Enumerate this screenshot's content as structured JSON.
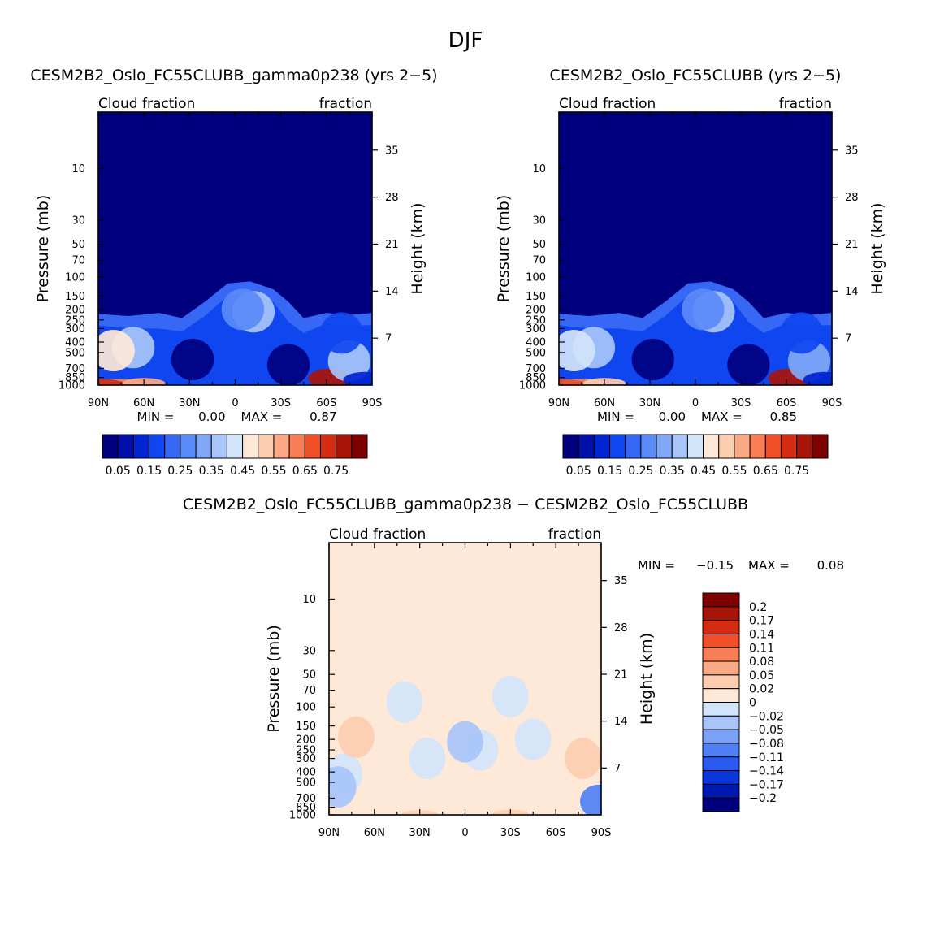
{
  "figure": {
    "suptitle": "DJF"
  },
  "chart_data": [
    {
      "id": "panel1",
      "type": "heatmap",
      "title": "CESM2B2_Oslo_FC55CLUBB_gamma0p238 (yrs 2−5)",
      "top_left_label": "Cloud fraction",
      "top_right_label": "fraction",
      "ylabel": "Pressure (mb)",
      "ylabel_right": "Height (km)",
      "x_tick_labels": [
        "90N",
        "60N",
        "30N",
        "0",
        "30S",
        "60S",
        "90S"
      ],
      "x_ticks": [
        -90,
        -60,
        -30,
        0,
        30,
        60,
        90
      ],
      "xlim": [
        -90,
        90
      ],
      "y_tick_labels": [
        "10",
        "30",
        "50",
        "70",
        "100",
        "150",
        "200",
        "250",
        "300",
        "400",
        "500",
        "700",
        "850",
        "1000"
      ],
      "y_ticks": [
        10,
        30,
        50,
        70,
        100,
        150,
        200,
        250,
        300,
        400,
        500,
        700,
        850,
        1000
      ],
      "ylim": [
        1000,
        3
      ],
      "yscale": "log",
      "height_ticks": [
        7,
        14,
        21,
        28,
        35
      ],
      "min_label": "MIN =",
      "min": "0.00",
      "max_label": "MAX =",
      "max": "0.87",
      "features": [
        {
          "x": -67,
          "p": 450,
          "value": 0.38
        },
        {
          "x": -80,
          "p": 480,
          "value": 0.45
        },
        {
          "x": -75,
          "p": 970,
          "value": 0.62
        },
        {
          "x": -88,
          "p": 970,
          "value": 0.7
        },
        {
          "x": -60,
          "p": 960,
          "value": 0.55
        },
        {
          "x": 12,
          "p": 210,
          "value": 0.35
        },
        {
          "x": 5,
          "p": 200,
          "value": 0.25
        },
        {
          "x": -28,
          "p": 580,
          "value": 0.0
        },
        {
          "x": 35,
          "p": 650,
          "value": 0.0
        },
        {
          "x": 62,
          "p": 870,
          "value": 0.87
        },
        {
          "x": 75,
          "p": 600,
          "value": 0.35
        },
        {
          "x": 70,
          "p": 330,
          "value": 0.18
        },
        {
          "x": 85,
          "p": 900,
          "value": 0.1
        }
      ]
    },
    {
      "id": "panel2",
      "type": "heatmap",
      "title": "CESM2B2_Oslo_FC55CLUBB (yrs 2−5)",
      "top_left_label": "Cloud fraction",
      "top_right_label": "fraction",
      "ylabel": "Pressure (mb)",
      "ylabel_right": "Height (km)",
      "x_tick_labels": [
        "90N",
        "60N",
        "30N",
        "0",
        "30S",
        "60S",
        "90S"
      ],
      "x_ticks": [
        -90,
        -60,
        -30,
        0,
        30,
        60,
        90
      ],
      "xlim": [
        -90,
        90
      ],
      "y_tick_labels": [
        "10",
        "30",
        "50",
        "70",
        "100",
        "150",
        "200",
        "250",
        "300",
        "400",
        "500",
        "700",
        "850",
        "1000"
      ],
      "y_ticks": [
        10,
        30,
        50,
        70,
        100,
        150,
        200,
        250,
        300,
        400,
        500,
        700,
        850,
        1000
      ],
      "ylim": [
        1000,
        3
      ],
      "yscale": "log",
      "height_ticks": [
        7,
        14,
        21,
        28,
        35
      ],
      "min_label": "MIN =",
      "min": "0.00",
      "max_label": "MAX =",
      "max": "0.85",
      "features": [
        {
          "x": -67,
          "p": 450,
          "value": 0.38
        },
        {
          "x": -80,
          "p": 480,
          "value": 0.44
        },
        {
          "x": -75,
          "p": 970,
          "value": 0.6
        },
        {
          "x": -88,
          "p": 970,
          "value": 0.68
        },
        {
          "x": -60,
          "p": 960,
          "value": 0.53
        },
        {
          "x": 12,
          "p": 210,
          "value": 0.35
        },
        {
          "x": 5,
          "p": 200,
          "value": 0.25
        },
        {
          "x": -28,
          "p": 580,
          "value": 0.0
        },
        {
          "x": 35,
          "p": 650,
          "value": 0.0
        },
        {
          "x": 62,
          "p": 870,
          "value": 0.85
        },
        {
          "x": 75,
          "p": 600,
          "value": 0.34
        },
        {
          "x": 70,
          "p": 330,
          "value": 0.18
        },
        {
          "x": 85,
          "p": 900,
          "value": 0.1
        }
      ]
    },
    {
      "id": "panel3",
      "type": "heatmap",
      "title": "CESM2B2_Oslo_FC55CLUBB_gamma0p238 − CESM2B2_Oslo_FC55CLUBB",
      "top_left_label": "Cloud fraction",
      "top_right_label": "fraction",
      "ylabel": "Pressure (mb)",
      "ylabel_right": "Height (km)",
      "x_tick_labels": [
        "90N",
        "60N",
        "30N",
        "0",
        "30S",
        "60S",
        "90S"
      ],
      "x_ticks": [
        -90,
        -60,
        -30,
        0,
        30,
        60,
        90
      ],
      "xlim": [
        -90,
        90
      ],
      "y_tick_labels": [
        "10",
        "30",
        "50",
        "70",
        "100",
        "150",
        "200",
        "250",
        "300",
        "400",
        "500",
        "700",
        "850",
        "1000"
      ],
      "y_ticks": [
        10,
        30,
        50,
        70,
        100,
        150,
        200,
        250,
        300,
        400,
        500,
        700,
        850,
        1000
      ],
      "ylim": [
        1000,
        3
      ],
      "yscale": "log",
      "height_ticks": [
        7,
        14,
        21,
        28,
        35
      ],
      "min_label": "MIN =",
      "min": "−0.15",
      "max_label": "MAX =",
      "max": "0.08",
      "features": [
        {
          "x": -80,
          "p": 420,
          "value": -0.01
        },
        {
          "x": -25,
          "p": 300,
          "value": -0.01
        },
        {
          "x": 10,
          "p": 250,
          "value": -0.01
        },
        {
          "x": 45,
          "p": 200,
          "value": -0.01
        },
        {
          "x": -40,
          "p": 90,
          "value": -0.01
        },
        {
          "x": 30,
          "p": 80,
          "value": -0.01
        },
        {
          "x": -84,
          "p": 550,
          "value": -0.05
        },
        {
          "x": 0,
          "p": 210,
          "value": -0.05
        },
        {
          "x": 88,
          "p": 750,
          "value": -0.1
        },
        {
          "x": -72,
          "p": 190,
          "value": 0.03
        },
        {
          "x": 78,
          "p": 300,
          "value": 0.03
        },
        {
          "x": 30,
          "p": 980,
          "value": 0.04
        },
        {
          "x": -30,
          "p": 985,
          "value": 0.03
        }
      ]
    }
  ],
  "colorbars": {
    "absolute": {
      "tick_labels": [
        "0.05",
        "0.15",
        "0.25",
        "0.35",
        "0.45",
        "0.55",
        "0.65",
        "0.75"
      ],
      "levels": [
        0.05,
        0.1,
        0.15,
        0.2,
        0.25,
        0.3,
        0.35,
        0.4,
        0.45,
        0.5,
        0.55,
        0.6,
        0.65,
        0.7,
        0.75
      ],
      "colors": [
        "#00007f",
        "#0010a8",
        "#0024d0",
        "#1046f0",
        "#3668f5",
        "#5a8af7",
        "#80a8f7",
        "#a8c6fa",
        "#d2e4fa",
        "#fee8d8",
        "#fdcdb0",
        "#fbaa85",
        "#f97e55",
        "#f05028",
        "#d42c10",
        "#a81508",
        "#7f0000"
      ]
    },
    "difference": {
      "tick_labels": [
        "0.2",
        "0.17",
        "0.14",
        "0.11",
        "0.08",
        "0.05",
        "0.02",
        "0",
        "−0.02",
        "−0.05",
        "−0.08",
        "−0.11",
        "−0.14",
        "−0.17",
        "−0.2"
      ],
      "levels": [
        -0.2,
        -0.17,
        -0.14,
        -0.11,
        -0.08,
        -0.05,
        -0.02,
        0,
        0.02,
        0.05,
        0.08,
        0.11,
        0.14,
        0.17,
        0.2
      ],
      "colors": [
        "#00007f",
        "#0018b0",
        "#0a36de",
        "#2a5af2",
        "#5080f5",
        "#7aa0f8",
        "#a8c4fa",
        "#d2e4fa",
        "#fee8d8",
        "#fdcdb0",
        "#fbaa85",
        "#f97e55",
        "#f05028",
        "#d42c10",
        "#a81508",
        "#7f0000"
      ]
    }
  }
}
